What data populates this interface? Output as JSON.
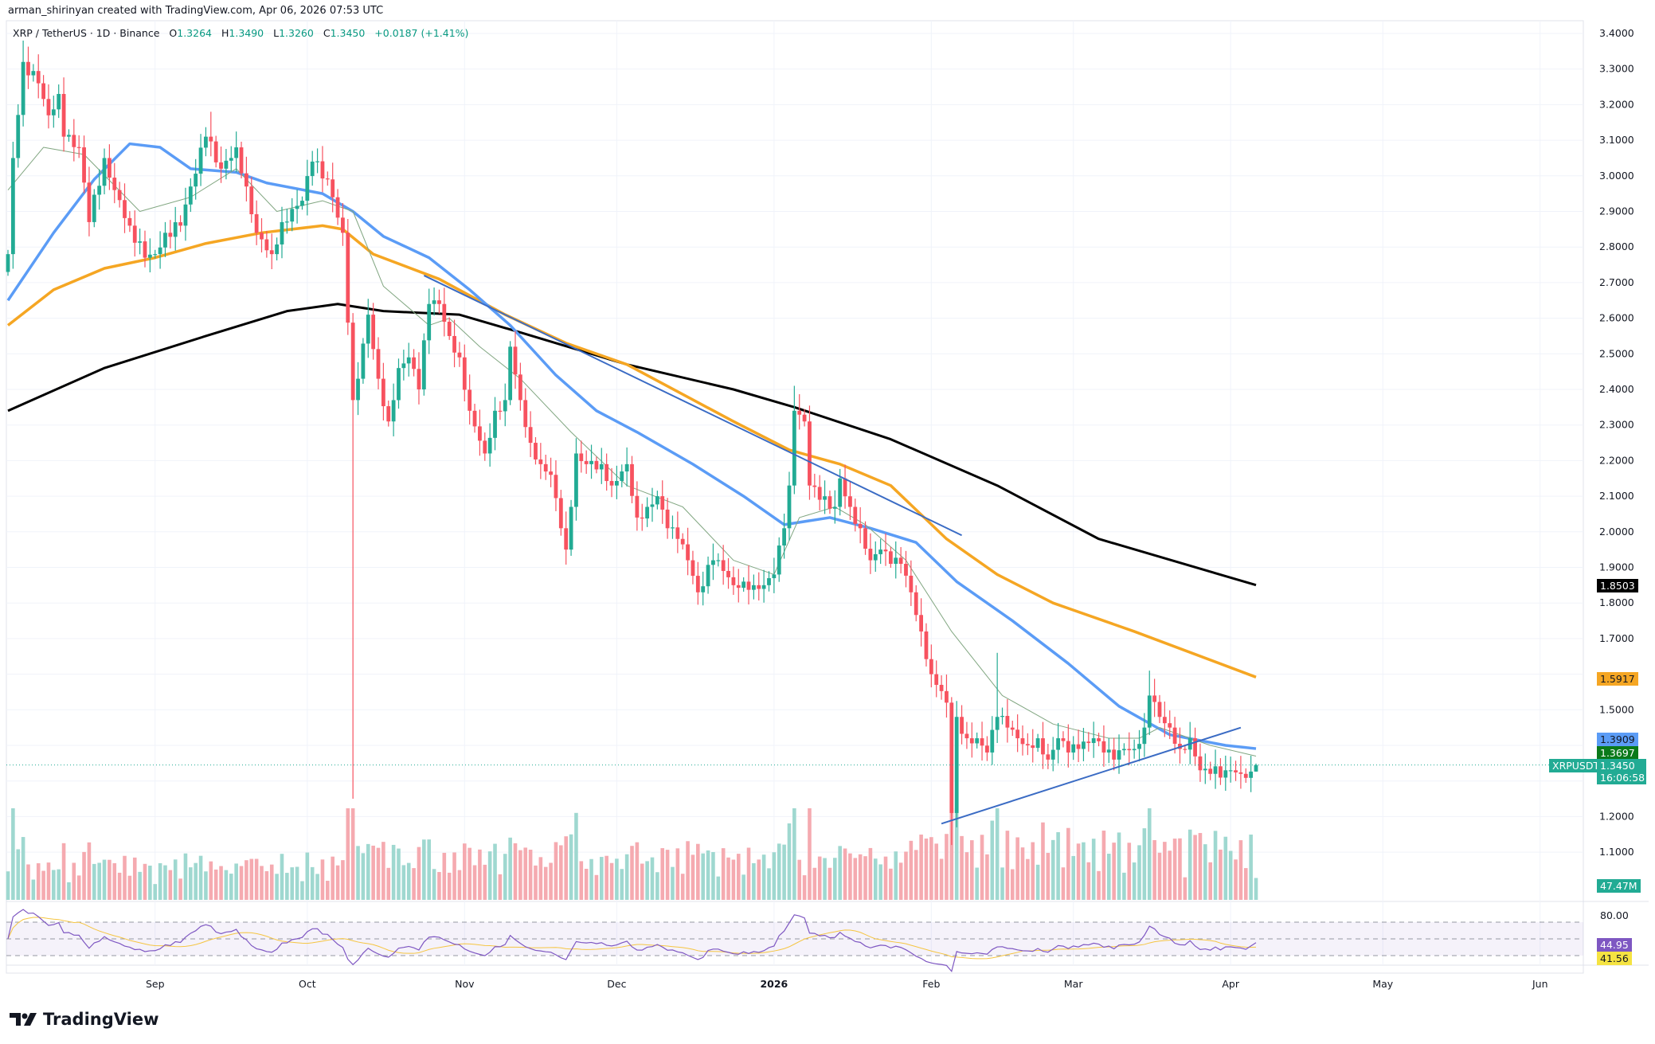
{
  "credit": "arman_shirinyan created with TradingView.com, Apr 06, 2026 07:53 UTC",
  "legend": {
    "symbol": "XRP / TetherUS · 1D · Binance",
    "o_label": "O",
    "o": "1.3264",
    "h_label": "H",
    "h": "1.3490",
    "l_label": "L",
    "l": "1.3260",
    "c_label": "C",
    "c": "1.3450",
    "change": "+0.0187 (+1.41%)"
  },
  "price_axis": [
    "3.4000",
    "3.3000",
    "3.2000",
    "3.1000",
    "3.0000",
    "2.9000",
    "2.8000",
    "2.7000",
    "2.6000",
    "2.5000",
    "2.4000",
    "2.3000",
    "2.2000",
    "2.1000",
    "2.0000",
    "1.9000",
    "1.8000",
    "1.7000",
    "1.5000",
    "1.2000",
    "1.1000"
  ],
  "badges": {
    "black": "1.8503",
    "orange": "1.5917",
    "blue": "1.3909",
    "green": "1.3697",
    "symbol": "XRPUSDT",
    "price": "1.3450",
    "countdown": "16:06:58",
    "volume": "47.47M",
    "rsi_top": "80.00",
    "rsi": "44.95",
    "rsi_ma": "41.56"
  },
  "time_axis": [
    "Sep",
    "Oct",
    "Nov",
    "Dec",
    "2026",
    "Feb",
    "Mar",
    "Apr",
    "May",
    "Jun"
  ],
  "brand": "TradingView",
  "colors": {
    "up": "#22ab94",
    "down": "#f7525f",
    "black_ma": "#000000",
    "orange_ma": "#f5a623",
    "blue_ma": "#5b9cf6",
    "green_ma": "#81a681",
    "trendline": "#3a6bc4",
    "rsi": "#7e57c2",
    "rsi_ma": "#f5c542"
  },
  "chart_data": {
    "type": "candlestick",
    "symbol": "XRPUSDT",
    "interval": "1D",
    "y_range": [
      1.05,
      3.42
    ],
    "x_range": [
      "2025-08-03",
      "2026-06-15"
    ],
    "close_path": [
      [
        "2025-08-03",
        2.78
      ],
      [
        "2025-08-04",
        3.05
      ],
      [
        "2025-08-06",
        3.32
      ],
      [
        "2025-08-09",
        3.26
      ],
      [
        "2025-08-11",
        3.17
      ],
      [
        "2025-08-13",
        3.23
      ],
      [
        "2025-08-14",
        3.11
      ],
      [
        "2025-08-17",
        3.08
      ],
      [
        "2025-08-19",
        2.87
      ],
      [
        "2025-08-22",
        3.05
      ],
      [
        "2025-08-24",
        2.96
      ],
      [
        "2025-08-27",
        2.86
      ],
      [
        "2025-08-30",
        2.77
      ],
      [
        "2025-09-01",
        2.78
      ],
      [
        "2025-09-03",
        2.84
      ],
      [
        "2025-09-06",
        2.86
      ],
      [
        "2025-09-08",
        2.97
      ],
      [
        "2025-09-11",
        3.11
      ],
      [
        "2025-09-14",
        3.02
      ],
      [
        "2025-09-17",
        3.08
      ],
      [
        "2025-09-19",
        2.97
      ],
      [
        "2025-09-21",
        2.84
      ],
      [
        "2025-09-24",
        2.78
      ],
      [
        "2025-09-26",
        2.87
      ],
      [
        "2025-09-30",
        2.93
      ],
      [
        "2025-10-02",
        3.04
      ],
      [
        "2025-10-05",
        2.99
      ],
      [
        "2025-10-08",
        2.84
      ],
      [
        "2025-10-10",
        2.37
      ],
      [
        "2025-10-11",
        2.43
      ],
      [
        "2025-10-13",
        2.61
      ],
      [
        "2025-10-15",
        2.43
      ],
      [
        "2025-10-17",
        2.31
      ],
      [
        "2025-10-19",
        2.46
      ],
      [
        "2025-10-21",
        2.49
      ],
      [
        "2025-10-23",
        2.4
      ],
      [
        "2025-10-25",
        2.64
      ],
      [
        "2025-10-27",
        2.64
      ],
      [
        "2025-10-29",
        2.55
      ],
      [
        "2025-10-31",
        2.49
      ],
      [
        "2025-11-02",
        2.34
      ],
      [
        "2025-11-05",
        2.22
      ],
      [
        "2025-11-07",
        2.34
      ],
      [
        "2025-11-09",
        2.37
      ],
      [
        "2025-11-10",
        2.52
      ],
      [
        "2025-11-12",
        2.37
      ],
      [
        "2025-11-14",
        2.25
      ],
      [
        "2025-11-16",
        2.19
      ],
      [
        "2025-11-18",
        2.16
      ],
      [
        "2025-11-20",
        2.01
      ],
      [
        "2025-11-21",
        1.95
      ],
      [
        "2025-11-22",
        2.07
      ],
      [
        "2025-11-23",
        2.22
      ],
      [
        "2025-11-25",
        2.19
      ],
      [
        "2025-11-28",
        2.19
      ],
      [
        "2025-11-30",
        2.13
      ],
      [
        "2025-12-03",
        2.19
      ],
      [
        "2025-12-05",
        2.04
      ],
      [
        "2025-12-07",
        2.07
      ],
      [
        "2025-12-09",
        2.1
      ],
      [
        "2025-12-11",
        2.01
      ],
      [
        "2025-12-13",
        1.98
      ],
      [
        "2025-12-15",
        1.92
      ],
      [
        "2025-12-17",
        1.83
      ],
      [
        "2025-12-20",
        1.92
      ],
      [
        "2025-12-22",
        1.89
      ],
      [
        "2025-12-24",
        1.85
      ],
      [
        "2025-12-26",
        1.86
      ],
      [
        "2025-12-28",
        1.85
      ],
      [
        "2025-12-30",
        1.85
      ],
      [
        "2026-01-01",
        1.88
      ],
      [
        "2026-01-03",
        2.01
      ],
      [
        "2026-01-04",
        2.13
      ],
      [
        "2026-01-05",
        2.34
      ],
      [
        "2026-01-07",
        2.31
      ],
      [
        "2026-01-08",
        2.13
      ],
      [
        "2026-01-10",
        2.09
      ],
      [
        "2026-01-13",
        2.07
      ],
      [
        "2026-01-14",
        2.15
      ],
      [
        "2026-01-16",
        2.07
      ],
      [
        "2026-01-18",
        2.01
      ],
      [
        "2026-01-20",
        1.92
      ],
      [
        "2026-01-22",
        1.95
      ],
      [
        "2026-01-24",
        1.91
      ],
      [
        "2026-01-26",
        1.91
      ],
      [
        "2026-01-28",
        1.83
      ],
      [
        "2026-01-30",
        1.72
      ],
      [
        "2026-02-01",
        1.6
      ],
      [
        "2026-02-02",
        1.57
      ],
      [
        "2026-02-04",
        1.52
      ],
      [
        "2026-02-05",
        1.21
      ],
      [
        "2026-02-06",
        1.48
      ],
      [
        "2026-02-08",
        1.42
      ],
      [
        "2026-02-10",
        1.42
      ],
      [
        "2026-02-12",
        1.38
      ],
      [
        "2026-02-14",
        1.48
      ],
      [
        "2026-02-16",
        1.45
      ],
      [
        "2026-02-18",
        1.42
      ],
      [
        "2026-02-20",
        1.4
      ],
      [
        "2026-02-22",
        1.42
      ],
      [
        "2026-02-24",
        1.36
      ],
      [
        "2026-02-26",
        1.42
      ],
      [
        "2026-02-28",
        1.38
      ],
      [
        "2026-03-02",
        1.39
      ],
      [
        "2026-03-05",
        1.42
      ],
      [
        "2026-03-07",
        1.38
      ],
      [
        "2026-03-09",
        1.36
      ],
      [
        "2026-03-11",
        1.39
      ],
      [
        "2026-03-13",
        1.39
      ],
      [
        "2026-03-15",
        1.45
      ],
      [
        "2026-03-16",
        1.54
      ],
      [
        "2026-03-18",
        1.48
      ],
      [
        "2026-03-20",
        1.45
      ],
      [
        "2026-03-22",
        1.39
      ],
      [
        "2026-03-24",
        1.42
      ],
      [
        "2026-03-26",
        1.33
      ],
      [
        "2026-03-28",
        1.32
      ],
      [
        "2026-03-31",
        1.33
      ],
      [
        "2026-04-01",
        1.33
      ],
      [
        "2026-04-03",
        1.32
      ],
      [
        "2026-04-05",
        1.3264
      ]
    ],
    "last_candle": {
      "date": "2026-04-06",
      "open": 1.3264,
      "high": 1.349,
      "low": 1.326,
      "close": 1.345
    },
    "extreme_wicks": [
      {
        "date": "2025-10-10",
        "low": 1.25
      },
      {
        "date": "2026-02-05",
        "low": 1.12
      },
      {
        "date": "2026-01-05",
        "high": 2.41
      },
      {
        "date": "2026-02-14",
        "high": 1.66
      },
      {
        "date": "2026-03-16",
        "high": 1.61
      },
      {
        "date": "2025-08-06",
        "high": 3.38
      },
      {
        "date": "2025-09-12",
        "high": 3.18
      }
    ],
    "moving_averages": [
      {
        "color_key": "black_ma",
        "last": 1.8503,
        "points": [
          [
            "2025-08-03",
            2.34
          ],
          [
            "2025-08-22",
            2.46
          ],
          [
            "2025-09-11",
            2.55
          ],
          [
            "2025-09-27",
            2.62
          ],
          [
            "2025-10-07",
            2.64
          ],
          [
            "2025-10-16",
            2.62
          ],
          [
            "2025-10-31",
            2.61
          ],
          [
            "2025-11-12",
            2.56
          ],
          [
            "2025-12-03",
            2.47
          ],
          [
            "2025-12-24",
            2.4
          ],
          [
            "2026-01-05",
            2.35
          ],
          [
            "2026-01-24",
            2.26
          ],
          [
            "2026-02-14",
            2.13
          ],
          [
            "2026-03-06",
            1.98
          ],
          [
            "2026-04-06",
            1.8503
          ]
        ]
      },
      {
        "color_key": "orange_ma",
        "last": 1.5917,
        "points": [
          [
            "2025-08-03",
            2.58
          ],
          [
            "2025-08-12",
            2.68
          ],
          [
            "2025-08-22",
            2.74
          ],
          [
            "2025-09-01",
            2.77
          ],
          [
            "2025-09-11",
            2.81
          ],
          [
            "2025-09-22",
            2.84
          ],
          [
            "2025-10-04",
            2.86
          ],
          [
            "2025-10-08",
            2.85
          ],
          [
            "2025-10-14",
            2.78
          ],
          [
            "2025-10-27",
            2.71
          ],
          [
            "2025-11-09",
            2.61
          ],
          [
            "2025-11-21",
            2.53
          ],
          [
            "2025-12-03",
            2.47
          ],
          [
            "2025-12-24",
            2.31
          ],
          [
            "2026-01-04",
            2.23
          ],
          [
            "2026-01-14",
            2.19
          ],
          [
            "2026-01-24",
            2.13
          ],
          [
            "2026-02-04",
            1.98
          ],
          [
            "2026-02-14",
            1.88
          ],
          [
            "2026-02-25",
            1.8
          ],
          [
            "2026-03-13",
            1.72
          ],
          [
            "2026-04-06",
            1.5917
          ]
        ]
      },
      {
        "color_key": "blue_ma",
        "last": 1.3909,
        "points": [
          [
            "2025-08-03",
            2.65
          ],
          [
            "2025-08-12",
            2.84
          ],
          [
            "2025-08-20",
            2.99
          ],
          [
            "2025-08-27",
            3.09
          ],
          [
            "2025-09-02",
            3.08
          ],
          [
            "2025-09-08",
            3.02
          ],
          [
            "2025-09-17",
            3.01
          ],
          [
            "2025-09-23",
            2.98
          ],
          [
            "2025-10-04",
            2.95
          ],
          [
            "2025-10-10",
            2.9
          ],
          [
            "2025-10-16",
            2.83
          ],
          [
            "2025-10-25",
            2.77
          ],
          [
            "2025-11-02",
            2.68
          ],
          [
            "2025-11-10",
            2.58
          ],
          [
            "2025-11-19",
            2.44
          ],
          [
            "2025-11-27",
            2.34
          ],
          [
            "2025-12-05",
            2.28
          ],
          [
            "2025-12-16",
            2.19
          ],
          [
            "2025-12-26",
            2.1
          ],
          [
            "2026-01-03",
            2.02
          ],
          [
            "2026-01-12",
            2.04
          ],
          [
            "2026-01-20",
            2.01
          ],
          [
            "2026-01-29",
            1.97
          ],
          [
            "2026-02-06",
            1.86
          ],
          [
            "2026-02-17",
            1.75
          ],
          [
            "2026-02-28",
            1.63
          ],
          [
            "2026-03-10",
            1.51
          ],
          [
            "2026-03-20",
            1.43
          ],
          [
            "2026-03-31",
            1.4
          ],
          [
            "2026-04-06",
            1.3909
          ]
        ]
      },
      {
        "color_key": "green_ma",
        "last": 1.3697,
        "points": [
          [
            "2025-08-03",
            2.96
          ],
          [
            "2025-08-10",
            3.08
          ],
          [
            "2025-08-18",
            3.06
          ],
          [
            "2025-08-29",
            2.9
          ],
          [
            "2025-09-08",
            2.94
          ],
          [
            "2025-09-17",
            3.02
          ],
          [
            "2025-09-25",
            2.9
          ],
          [
            "2025-10-04",
            2.93
          ],
          [
            "2025-10-10",
            2.9
          ],
          [
            "2025-10-16",
            2.69
          ],
          [
            "2025-10-25",
            2.58
          ],
          [
            "2025-10-29",
            2.6
          ],
          [
            "2025-11-04",
            2.52
          ],
          [
            "2025-11-12",
            2.43
          ],
          [
            "2025-11-22",
            2.28
          ],
          [
            "2025-12-03",
            2.13
          ],
          [
            "2025-12-14",
            2.07
          ],
          [
            "2025-12-24",
            1.92
          ],
          [
            "2026-01-01",
            1.88
          ],
          [
            "2026-01-06",
            2.04
          ],
          [
            "2026-01-13",
            2.07
          ],
          [
            "2026-01-19",
            2.02
          ],
          [
            "2026-01-27",
            1.92
          ],
          [
            "2026-02-05",
            1.72
          ],
          [
            "2026-02-15",
            1.54
          ],
          [
            "2026-02-25",
            1.46
          ],
          [
            "2026-03-08",
            1.42
          ],
          [
            "2026-03-14",
            1.42
          ],
          [
            "2026-03-18",
            1.45
          ],
          [
            "2026-03-28",
            1.4
          ],
          [
            "2026-04-06",
            1.3697
          ]
        ]
      }
    ],
    "trendlines": [
      {
        "from": [
          "2025-10-24",
          2.72
        ],
        "to": [
          "2026-02-07",
          1.99
        ]
      },
      {
        "from": [
          "2026-02-03",
          1.18
        ],
        "to": [
          "2026-04-03",
          1.45
        ]
      }
    ],
    "rsi": {
      "levels": [
        70,
        50,
        30
      ],
      "axis_label": 80,
      "last": 44.95,
      "ma_last": 41.56
    }
  }
}
